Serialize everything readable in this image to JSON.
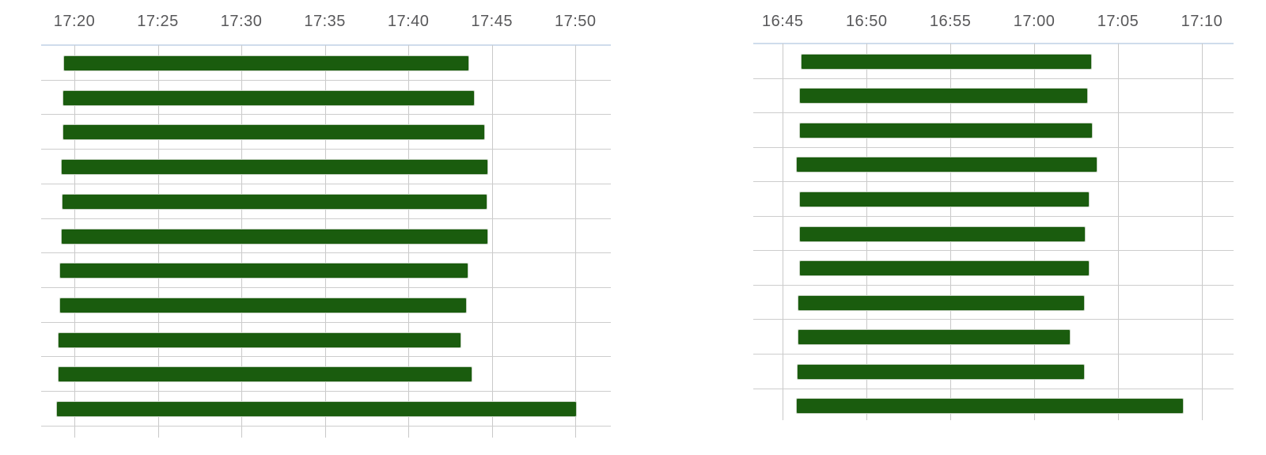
{
  "page": {
    "background": "#ffffff"
  },
  "colors": {
    "bar_fill": "#1a5c0e",
    "bar_border": "#c6d2c2",
    "gridline": "#c9c9c9",
    "row_separator": "#cdcdcd",
    "axis_line": "#cfdcec",
    "tick_label": "#58585a"
  },
  "chart_data": [
    {
      "type": "gantt",
      "title": "",
      "legend": "none",
      "grid": true,
      "bar_color": "#1a5c0e",
      "axis": {
        "position": "top",
        "tick_interval_minutes": 5,
        "domain_minutes": [
          1038.01,
          1072.12
        ],
        "ticks": [
          {
            "label": "17:20",
            "minutes": 1040
          },
          {
            "label": "17:25",
            "minutes": 1045
          },
          {
            "label": "17:30",
            "minutes": 1050
          },
          {
            "label": "17:35",
            "minutes": 1055
          },
          {
            "label": "17:40",
            "minutes": 1060
          },
          {
            "label": "17:45",
            "minutes": 1065
          },
          {
            "label": "17:50",
            "minutes": 1070
          }
        ]
      },
      "rows": 11,
      "bars": [
        {
          "row": 1,
          "start": "17:19:20",
          "end": "17:43:38",
          "start_minutes": 1039.34,
          "end_minutes": 1063.64
        },
        {
          "row": 2,
          "start": "17:19:17",
          "end": "17:43:59",
          "start_minutes": 1039.29,
          "end_minutes": 1063.98
        },
        {
          "row": 3,
          "start": "17:19:17",
          "end": "17:44:36",
          "start_minutes": 1039.29,
          "end_minutes": 1064.6
        },
        {
          "row": 4,
          "start": "17:19:13",
          "end": "17:44:46",
          "start_minutes": 1039.21,
          "end_minutes": 1064.77
        },
        {
          "row": 5,
          "start": "17:19:14",
          "end": "17:44:44",
          "start_minutes": 1039.23,
          "end_minutes": 1064.74
        },
        {
          "row": 6,
          "start": "17:19:11",
          "end": "17:44:47",
          "start_minutes": 1039.18,
          "end_minutes": 1064.79
        },
        {
          "row": 7,
          "start": "17:19:05",
          "end": "17:43:36",
          "start_minutes": 1039.08,
          "end_minutes": 1063.6
        },
        {
          "row": 8,
          "start": "17:19:07",
          "end": "17:43:30",
          "start_minutes": 1039.11,
          "end_minutes": 1063.5
        },
        {
          "row": 9,
          "start": "17:19:01",
          "end": "17:43:10",
          "start_minutes": 1039.02,
          "end_minutes": 1063.17
        },
        {
          "row": 10,
          "start": "17:18:59",
          "end": "17:43:51",
          "start_minutes": 1038.99,
          "end_minutes": 1063.85
        },
        {
          "row": 11,
          "start": "17:18:54",
          "end": "17:50:04",
          "start_minutes": 1038.89,
          "end_minutes": 1070.06
        }
      ]
    },
    {
      "type": "gantt",
      "title": "",
      "legend": "none",
      "grid": true,
      "bar_color": "#1a5c0e",
      "axis": {
        "position": "top",
        "tick_interval_minutes": 5,
        "domain_minutes": [
          1003.24,
          1031.89
        ],
        "ticks": [
          {
            "label": "16:45",
            "minutes": 1005
          },
          {
            "label": "16:50",
            "minutes": 1010
          },
          {
            "label": "16:55",
            "minutes": 1015
          },
          {
            "label": "17:00",
            "minutes": 1020
          },
          {
            "label": "17:05",
            "minutes": 1025
          },
          {
            "label": "17:10",
            "minutes": 1030
          }
        ]
      },
      "rows": 11,
      "bars": [
        {
          "row": 1,
          "start": "16:46:04",
          "end": "17:03:26",
          "start_minutes": 1006.07,
          "end_minutes": 1023.43
        },
        {
          "row": 2,
          "start": "16:46:00",
          "end": "17:03:12",
          "start_minutes": 1006.0,
          "end_minutes": 1023.2
        },
        {
          "row": 3,
          "start": "16:46:00",
          "end": "17:03:30",
          "start_minutes": 1006.0,
          "end_minutes": 1023.5
        },
        {
          "row": 4,
          "start": "16:45:48",
          "end": "17:03:45",
          "start_minutes": 1005.8,
          "end_minutes": 1023.75
        },
        {
          "row": 5,
          "start": "16:46:00",
          "end": "17:03:17",
          "start_minutes": 1006.0,
          "end_minutes": 1023.28
        },
        {
          "row": 6,
          "start": "16:46:00",
          "end": "17:03:05",
          "start_minutes": 1006.0,
          "end_minutes": 1023.08
        },
        {
          "row": 7,
          "start": "16:46:00",
          "end": "17:03:17",
          "start_minutes": 1006.0,
          "end_minutes": 1023.28
        },
        {
          "row": 8,
          "start": "16:45:54",
          "end": "17:03:00",
          "start_minutes": 1005.9,
          "end_minutes": 1023.0
        },
        {
          "row": 9,
          "start": "16:45:54",
          "end": "17:02:10",
          "start_minutes": 1005.9,
          "end_minutes": 1022.17
        },
        {
          "row": 10,
          "start": "16:45:51",
          "end": "17:03:00",
          "start_minutes": 1005.85,
          "end_minutes": 1023.0
        },
        {
          "row": 11,
          "start": "16:45:48",
          "end": "17:08:55",
          "start_minutes": 1005.8,
          "end_minutes": 1028.92
        }
      ]
    }
  ]
}
